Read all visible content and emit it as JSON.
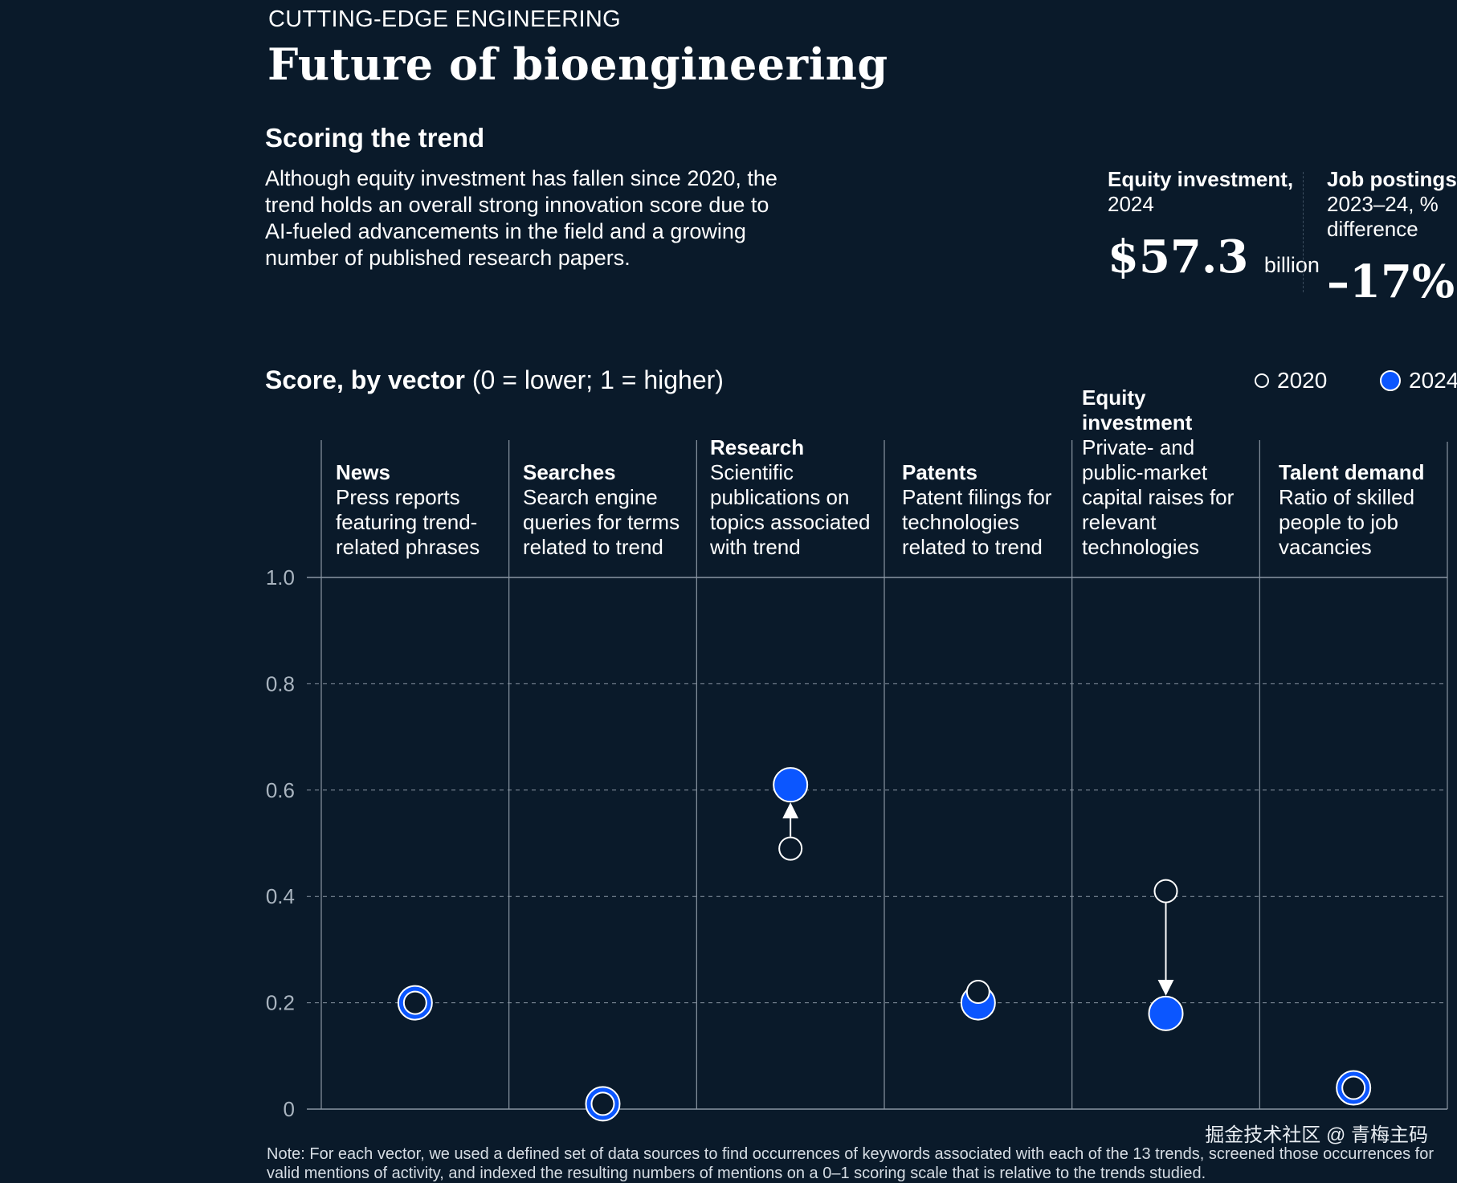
{
  "header": {
    "eyebrow": "CUTTING-EDGE ENGINEERING",
    "title": "Future of bioengineering"
  },
  "summary": {
    "heading": "Scoring the trend",
    "text": "Although equity investment has fallen since 2020, the trend holds an overall strong innovation score due to AI-fueled advancements in the field and a growing number of published research papers."
  },
  "stats": [
    {
      "label_bold": "Equity investment,",
      "label_rest": "2024",
      "value": "$57.3",
      "unit": "billion"
    },
    {
      "label_bold": "Job postings,",
      "label_rest": "2023–24, % difference",
      "value": "–17%",
      "unit": ""
    }
  ],
  "chart_heading": {
    "bold": "Score, by vector",
    "rest": " (0 = lower; 1 = higher)"
  },
  "legend": {
    "label_2020": "2020",
    "label_2024": "2024"
  },
  "colors": {
    "background": "#0a1a2a",
    "accent_2024": "#0b56ff",
    "marker_2020": "#ffffff",
    "grid": "#8a96a3"
  },
  "chart_data": {
    "type": "scatter",
    "title": "Score, by vector (0 = lower; 1 = higher)",
    "ylim": [
      0,
      1
    ],
    "yticks": [
      {
        "value": 0,
        "label": "0"
      },
      {
        "value": 0.2,
        "label": "0.2"
      },
      {
        "value": 0.4,
        "label": "0.4"
      },
      {
        "value": 0.6,
        "label": "0.6"
      },
      {
        "value": 0.8,
        "label": "0.8"
      },
      {
        "value": 1.0,
        "label": "1.0"
      }
    ],
    "categories": [
      {
        "name": "News",
        "description": "Press reports featuring trend-related phrases"
      },
      {
        "name": "Searches",
        "description": "Search engine queries for terms related to trend"
      },
      {
        "name": "Research",
        "description": "Scientific publications on topics associated with trend"
      },
      {
        "name": "Patents",
        "description": "Patent filings for technologies related to trend"
      },
      {
        "name": "Equity investment",
        "description": "Private- and public-market capital raises for relevant technologies"
      },
      {
        "name": "Talent demand",
        "description": "Ratio of skilled people to job vacancies"
      }
    ],
    "series": [
      {
        "name": "2020",
        "values": [
          0.2,
          0.01,
          0.49,
          0.21,
          0.41,
          0.04
        ]
      },
      {
        "name": "2024",
        "values": [
          0.2,
          0.01,
          0.61,
          0.2,
          0.18,
          0.04
        ]
      }
    ],
    "legend": "top-right"
  },
  "watermark": "掘金技术社区 @ 青梅主码",
  "note": "Note: For each vector, we used a defined set of data sources to find occurrences of keywords associated with each of the 13 trends, screened those occurrences for valid mentions of activity, and indexed the resulting numbers of mentions on a 0–1 scoring scale that is relative to the trends studied."
}
